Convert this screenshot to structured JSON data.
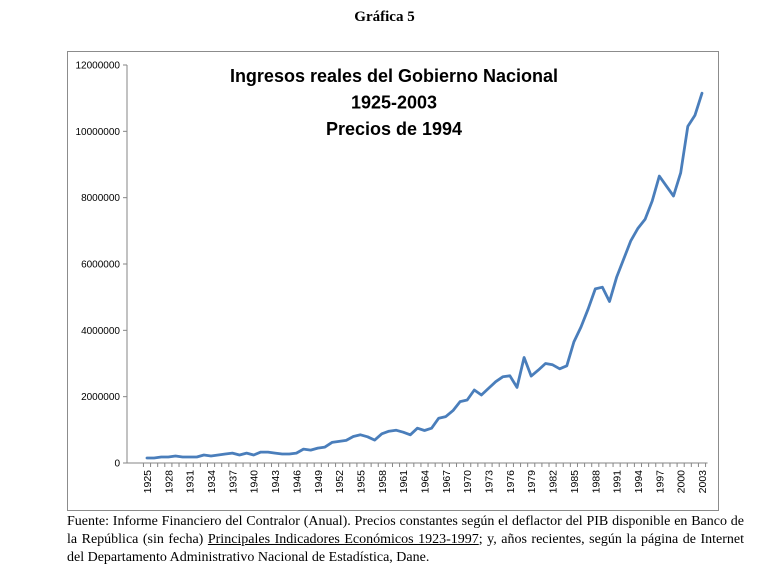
{
  "figure_title": "Gráfica 5",
  "chart_data": {
    "type": "line",
    "title_lines": [
      "Ingresos reales del Gobierno Nacional",
      "1925-2003",
      "Precios de 1994"
    ],
    "xlabel": "",
    "ylabel": "",
    "ylim": [
      0,
      12000000
    ],
    "yticks": [
      0,
      2000000,
      4000000,
      6000000,
      8000000,
      10000000,
      12000000
    ],
    "ytick_labels": [
      "0",
      "2000000",
      "4000000",
      "6000000",
      "8000000",
      "10000000",
      "12000000"
    ],
    "xtick_labels": [
      "1925",
      "1928",
      "1931",
      "1934",
      "1937",
      "1940",
      "1943",
      "1946",
      "1949",
      "1952",
      "1955",
      "1958",
      "1961",
      "1964",
      "1967",
      "1970",
      "1973",
      "1976",
      "1979",
      "1982",
      "1985",
      "1988",
      "1991",
      "1994",
      "1997",
      "2000",
      "2003"
    ],
    "grid": false,
    "legend": "none",
    "series_color": "#4a7ebb",
    "x_start": 1925,
    "x_end": 2003,
    "values": [
      150000,
      150000,
      180000,
      180000,
      210000,
      180000,
      180000,
      180000,
      240000,
      210000,
      240000,
      270000,
      300000,
      240000,
      300000,
      240000,
      330000,
      330000,
      300000,
      270000,
      270000,
      300000,
      420000,
      390000,
      450000,
      480000,
      620000,
      650000,
      680000,
      800000,
      850000,
      790000,
      690000,
      880000,
      960000,
      990000,
      930000,
      850000,
      1050000,
      980000,
      1050000,
      1350000,
      1400000,
      1580000,
      1850000,
      1900000,
      2200000,
      2050000,
      2250000,
      2450000,
      2600000,
      2630000,
      2280000,
      3180000,
      2620000,
      2800000,
      3000000,
      2960000,
      2840000,
      2930000,
      3650000,
      4100000,
      4650000,
      5250000,
      5300000,
      4870000,
      5600000,
      6150000,
      6700000,
      7080000,
      7350000,
      7900000,
      8650000,
      8350000,
      8050000,
      8750000,
      10150000,
      10480000,
      11150000
    ]
  },
  "footnote": {
    "part1": "Fuente: Informe Financiero del Contralor (Anual). Precios constantes según el deflactor del PIB disponible en Banco de la República (sin fecha) ",
    "underlined": "Principales Indicadores Económicos 1923-1997",
    "part2": "; y, años recientes, según la página de Internet del Departamento Administrativo Nacional de Estadística, Dane."
  }
}
